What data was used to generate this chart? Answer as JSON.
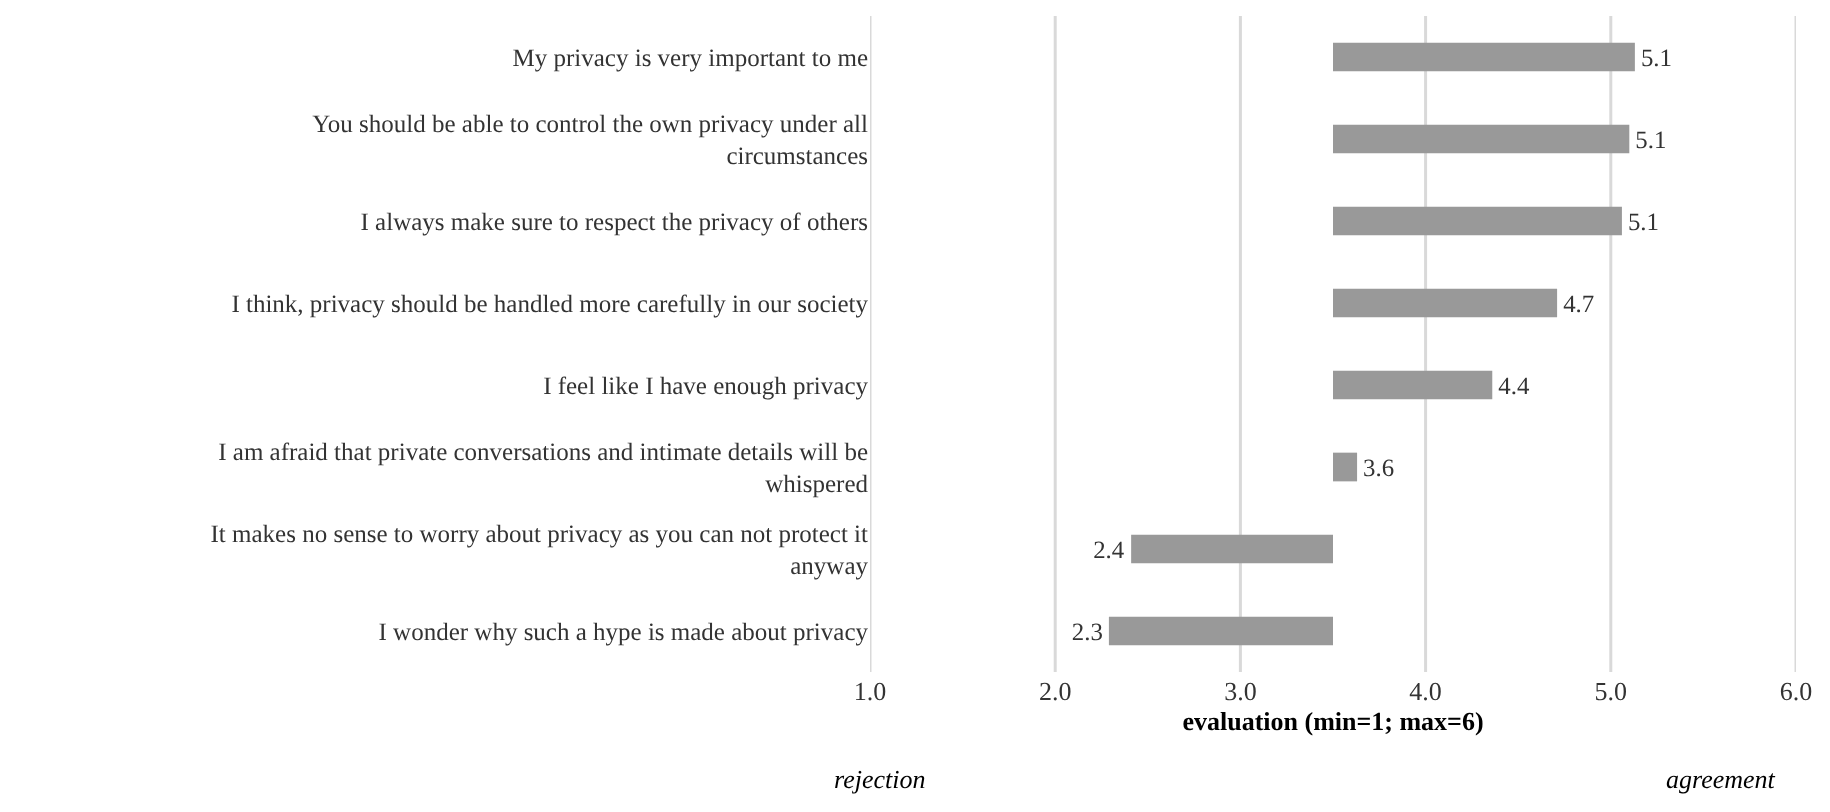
{
  "chart_data": {
    "type": "bar",
    "orientation": "horizontal",
    "categories": [
      "My privacy is very important to me",
      "You should be able to control the own privacy under all circumstances",
      "I always make sure to respect the privacy of others",
      "I think, privacy should be handled more carefully in our society",
      "I feel like I have enough privacy",
      "I am afraid that private conversations and intimate details will be whispered",
      "It makes no sense to worry about privacy as you can not protect it anyway",
      "I wonder why such a hype is made about privacy"
    ],
    "values": [
      1.63,
      1.6,
      1.56,
      1.21,
      0.86,
      0.13,
      -1.09,
      -1.21
    ],
    "base": [
      3.5,
      3.5,
      3.5,
      3.5,
      3.5,
      3.5,
      3.5,
      3.5
    ],
    "value_labels": [
      "5.1",
      "5.1",
      "5.1",
      "4.7",
      "4.4",
      "3.6",
      "2.4",
      "2.3"
    ],
    "color": "#999999",
    "xlabel": "evaluation (min=1; max=6)",
    "xlim": [
      1,
      6
    ],
    "xticks": [
      {
        "value": 1,
        "label": "1.0"
      },
      {
        "value": 2,
        "label": "2.0"
      },
      {
        "value": 3,
        "label": "3.0"
      },
      {
        "value": 4,
        "label": "4.0"
      },
      {
        "value": 5,
        "label": "5.0"
      },
      {
        "value": 6,
        "label": "6.0"
      }
    ],
    "grid": "x",
    "annotations": [
      "rejection",
      "agreement"
    ]
  }
}
